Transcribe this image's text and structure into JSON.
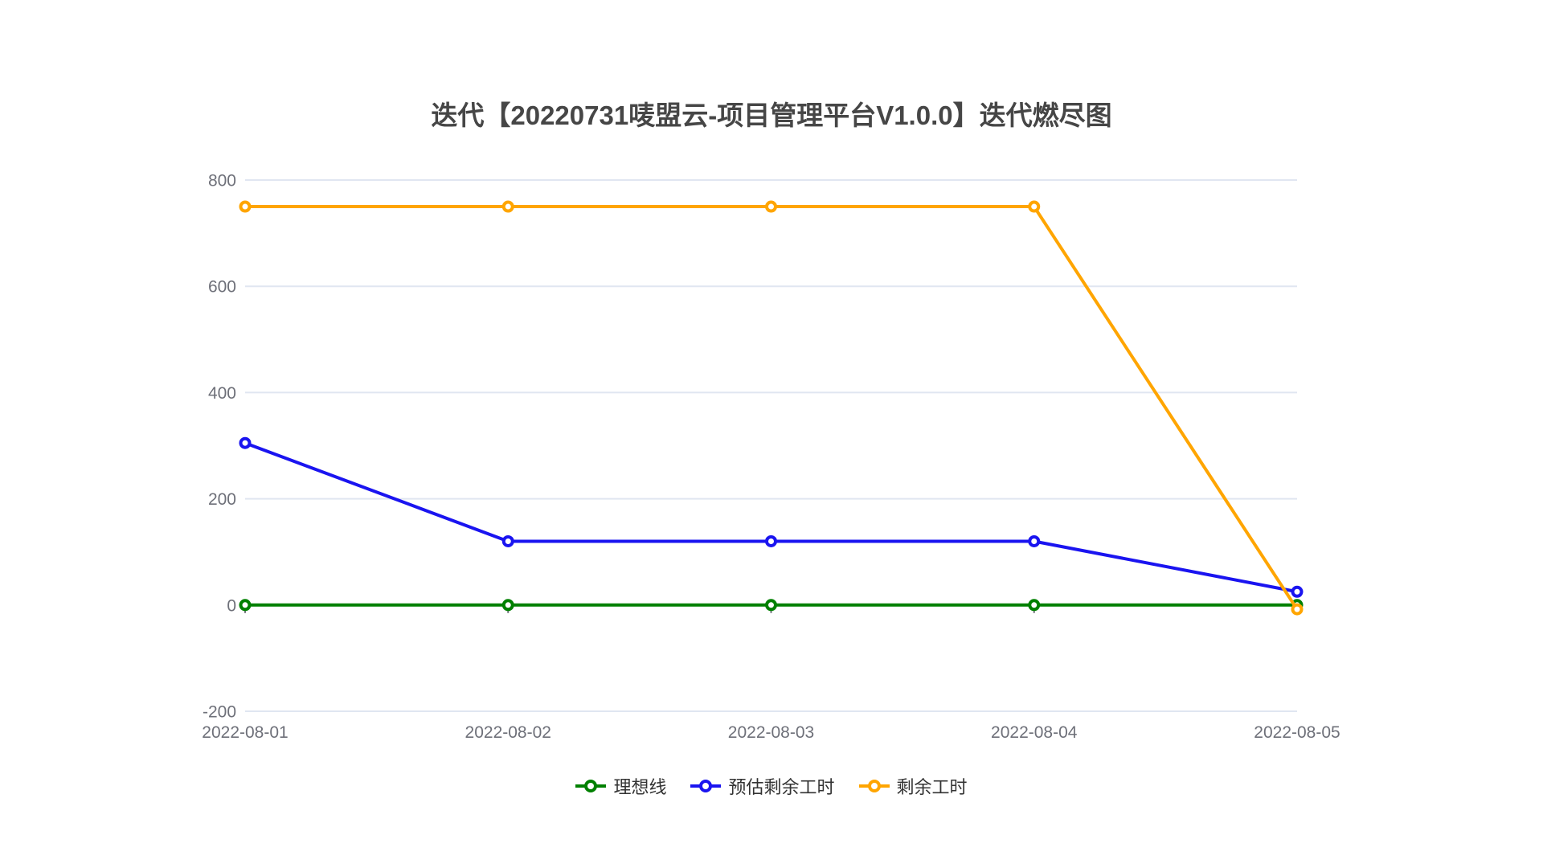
{
  "chart_data": {
    "type": "line",
    "title": "迭代【20220731唛盟云-项目管理平台V1.0.0】迭代燃尽图",
    "categories": [
      "2022-08-01",
      "2022-08-02",
      "2022-08-03",
      "2022-08-04",
      "2022-08-05"
    ],
    "series": [
      {
        "name": "理想线",
        "slug": "ideal-line",
        "color": "#008000",
        "values": [
          0,
          0,
          0,
          0,
          0
        ]
      },
      {
        "name": "预估剩余工时",
        "slug": "estimated-remaining-hours",
        "color": "#1a14f0",
        "values": [
          305,
          120,
          120,
          120,
          25
        ]
      },
      {
        "name": "剩余工时",
        "slug": "remaining-hours",
        "color": "#ffa500",
        "values": [
          750,
          750,
          750,
          750,
          -8
        ]
      }
    ],
    "yticks": [
      800,
      600,
      400,
      200,
      0,
      -200
    ],
    "ylim": [
      -200,
      800
    ],
    "xlabel": "",
    "ylabel": "",
    "grid": true,
    "legend_position": "bottom-center",
    "marker": "hollow-circle",
    "colors": {
      "title": "#464646",
      "axis_label": "#6E7079",
      "gridline": "#E0E6F1",
      "axis_line": "#6E7079",
      "legend_text": "#333333",
      "background": "#ffffff"
    }
  }
}
